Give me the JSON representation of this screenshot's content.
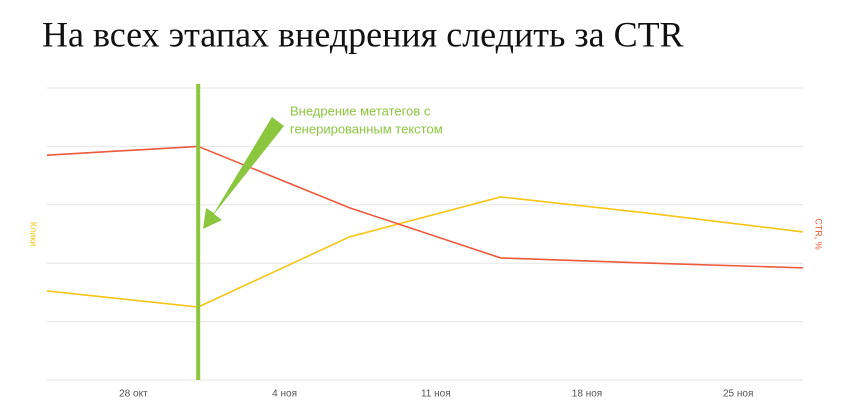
{
  "chart_data": {
    "type": "line",
    "title": "На всех этапах внедрения следить за CTR",
    "ylabel": "Клики",
    "y2label": "CTR, %",
    "x": [
      "10-24",
      "10-31",
      "11-07",
      "11-14",
      "11-21",
      "11-28"
    ],
    "xlim": [
      "10-24",
      "11-28"
    ],
    "xticks": [
      {
        "value": "10-28",
        "label": "28 окт"
      },
      {
        "value": "11-04",
        "label": "4 ноя"
      },
      {
        "value": "11-11",
        "label": "11 ноя"
      },
      {
        "value": "11-18",
        "label": "18 ноя"
      },
      {
        "value": "11-25",
        "label": "25 ноя"
      }
    ],
    "ylim": [
      0,
      100
    ],
    "y2lim": [
      0,
      100
    ],
    "grid": true,
    "series": [
      {
        "name": "Клики",
        "color": "#f5c518",
        "values": [
          30.5,
          25,
          49,
          62.7,
          57,
          50.7
        ]
      },
      {
        "name": "CTR, %",
        "color": "#ee5a3c",
        "axis": "y2",
        "values": [
          77,
          80,
          59,
          41.8,
          40,
          38.4
        ]
      }
    ],
    "annotation": {
      "x": "10-31",
      "color": "#8cc63f",
      "lines": [
        "Внедрение метатегов с",
        "генерированным текстом"
      ]
    }
  }
}
